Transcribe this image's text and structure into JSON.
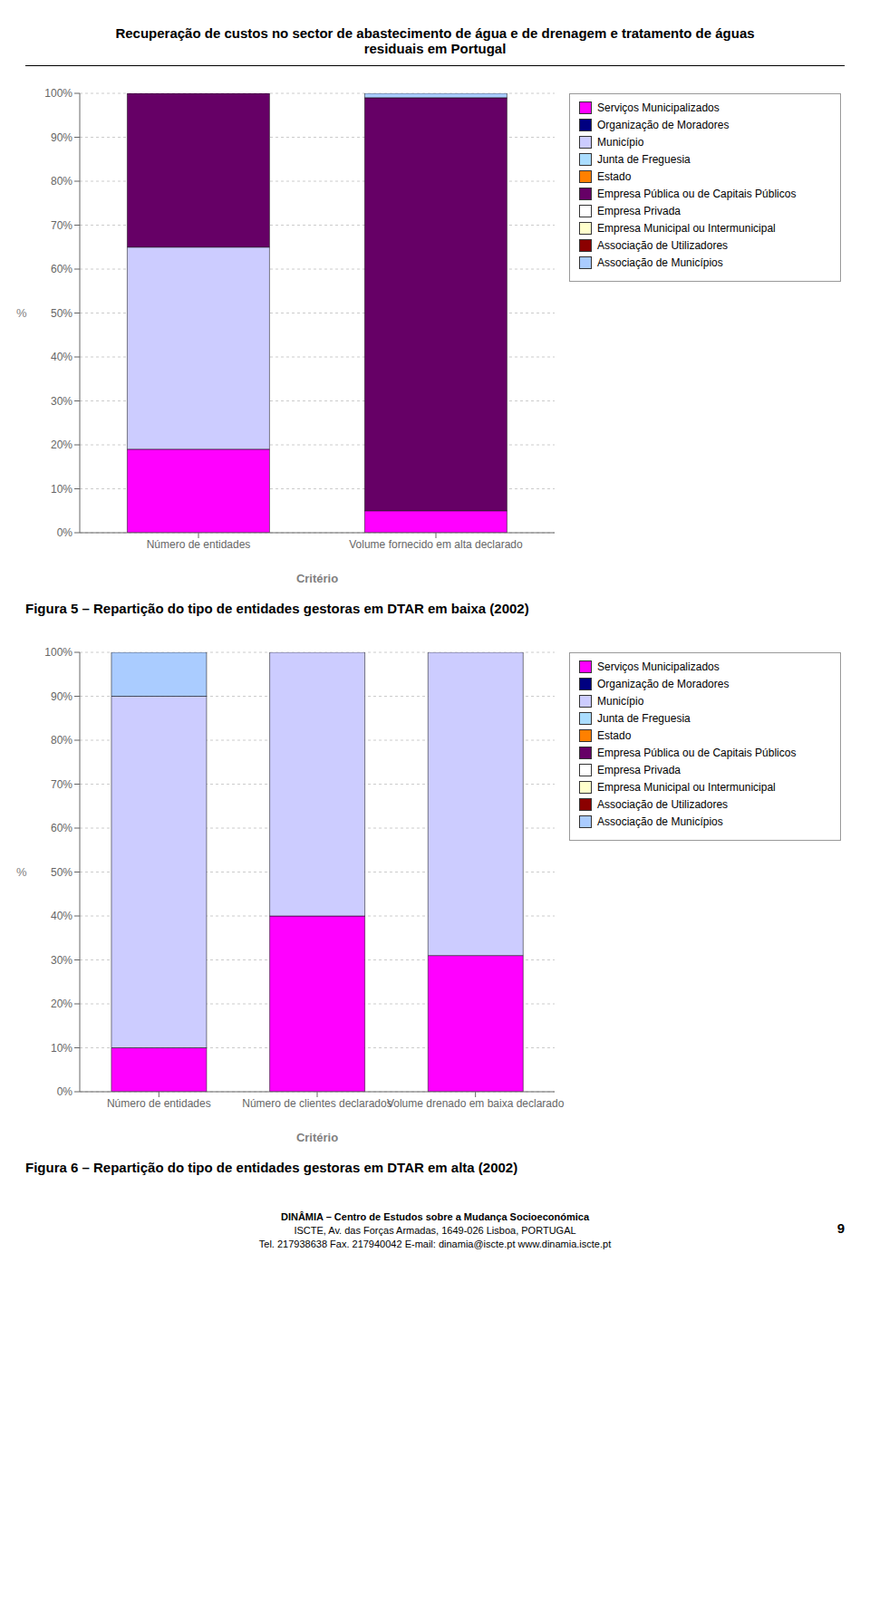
{
  "title": "Recuperação de custos no sector de abastecimento de água e de drenagem e tratamento de águas\nresiduais em Portugal",
  "annotations": [
    "DINÂMIA – Centro de Estudos sobre a Mudança Socioeconómica",
    "ISCTE, Av. das Forças Armadas, 1649-026 Lisboa, PORTUGAL",
    "Tel. 217938638 Fax. 217940042 E-mail: dinamia@iscte.pt www.dinamia.iscte.pt",
    "9"
  ],
  "chart_data": [
    {
      "type": "bar",
      "stacked": true,
      "title": "Figura 5 – Repartição do tipo de entidades gestoras em DTAR em baixa (2002)",
      "xlabel": "Critério",
      "ylabel": "%",
      "categories": [
        "Número de entidades",
        "Volume fornecido em alta declarado"
      ],
      "series": [
        {
          "name": "Serviços Municipalizados",
          "color": "#FF00FF",
          "values": [
            19,
            5
          ]
        },
        {
          "name": "Organização de Moradores",
          "color": "#000080",
          "values": [
            0,
            0
          ]
        },
        {
          "name": "Município",
          "color": "#CCCCFF",
          "values": [
            46,
            0
          ]
        },
        {
          "name": "Junta de Freguesia",
          "color": "#AADDFF",
          "values": [
            0,
            0
          ]
        },
        {
          "name": "Estado",
          "color": "#FF8000",
          "values": [
            0,
            0
          ]
        },
        {
          "name": "Empresa Pública ou de Capitais Públicos",
          "color": "#660066",
          "values": [
            35,
            94
          ]
        },
        {
          "name": "Empresa Privada",
          "color": "#FFFFFF",
          "values": [
            0,
            0
          ]
        },
        {
          "name": "Empresa Municipal ou Intermunicipal",
          "color": "#FFFFCC",
          "values": [
            0,
            0
          ]
        },
        {
          "name": "Associação de Utilizadores",
          "color": "#8B0000",
          "values": [
            0,
            0
          ]
        },
        {
          "name": "Associação de Municípios",
          "color": "#AACCFF",
          "values": [
            0,
            1
          ]
        }
      ],
      "ylim": [
        0,
        100
      ],
      "yticks": [
        {
          "value": 0,
          "label": "0%"
        },
        {
          "value": 10,
          "label": "10%"
        },
        {
          "value": 20,
          "label": "20%"
        },
        {
          "value": 30,
          "label": "30%"
        },
        {
          "value": 40,
          "label": "40%"
        },
        {
          "value": 50,
          "label": "50%"
        },
        {
          "value": 60,
          "label": "60%"
        },
        {
          "value": 70,
          "label": "70%"
        },
        {
          "value": 80,
          "label": "80%"
        },
        {
          "value": 90,
          "label": "90%"
        },
        {
          "value": 100,
          "label": "100%"
        }
      ],
      "grid": true,
      "legend": "right"
    },
    {
      "type": "bar",
      "stacked": true,
      "title": "Figura 6 – Repartição do tipo de entidades gestoras em DTAR em alta (2002)",
      "xlabel": "Critério",
      "ylabel": "%",
      "categories": [
        "Número de entidades",
        "Número de clientes declarados",
        "Volume drenado em baixa declarado"
      ],
      "series": [
        {
          "name": "Serviços Municipalizados",
          "color": "#FF00FF",
          "values": [
            10,
            40,
            31
          ]
        },
        {
          "name": "Organização de Moradores",
          "color": "#000080",
          "values": [
            0,
            0,
            0
          ]
        },
        {
          "name": "Município",
          "color": "#CCCCFF",
          "values": [
            80,
            60,
            69
          ]
        },
        {
          "name": "Junta de Freguesia",
          "color": "#AADDFF",
          "values": [
            0,
            0,
            0
          ]
        },
        {
          "name": "Estado",
          "color": "#FF8000",
          "values": [
            0,
            0,
            0
          ]
        },
        {
          "name": "Empresa Pública ou de Capitais Públicos",
          "color": "#660066",
          "values": [
            0,
            0,
            0
          ]
        },
        {
          "name": "Empresa Privada",
          "color": "#FFFFFF",
          "values": [
            0,
            0,
            0
          ]
        },
        {
          "name": "Empresa Municipal ou Intermunicipal",
          "color": "#FFFFCC",
          "values": [
            0,
            0,
            0
          ]
        },
        {
          "name": "Associação de Utilizadores",
          "color": "#8B0000",
          "values": [
            0,
            0,
            0
          ]
        },
        {
          "name": "Associação de Municípios",
          "color": "#AACCFF",
          "values": [
            10,
            0,
            0
          ]
        }
      ],
      "ylim": [
        0,
        100
      ],
      "yticks": [
        {
          "value": 0,
          "label": "0%"
        },
        {
          "value": 10,
          "label": "10%"
        },
        {
          "value": 20,
          "label": "20%"
        },
        {
          "value": 30,
          "label": "30%"
        },
        {
          "value": 40,
          "label": "40%"
        },
        {
          "value": 50,
          "label": "50%"
        },
        {
          "value": 60,
          "label": "60%"
        },
        {
          "value": 70,
          "label": "70%"
        },
        {
          "value": 80,
          "label": "80%"
        },
        {
          "value": 90,
          "label": "90%"
        },
        {
          "value": 100,
          "label": "100%"
        }
      ],
      "grid": true,
      "legend": "right"
    }
  ]
}
